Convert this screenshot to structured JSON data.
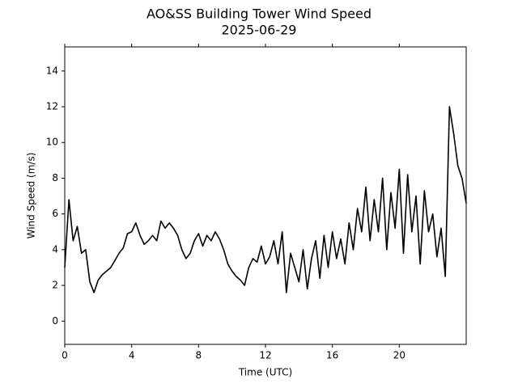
{
  "chart_data": {
    "type": "line",
    "title": "AO&SS Building Tower Wind Speed",
    "subtitle": "2025-06-29",
    "xlabel": "Time (UTC)",
    "ylabel": "Wind Speed (m/s)",
    "color": "#000000",
    "x": [
      0,
      0.25,
      0.5,
      0.75,
      1,
      1.25,
      1.5,
      1.75,
      2,
      2.25,
      2.5,
      2.75,
      3,
      3.25,
      3.5,
      3.75,
      4,
      4.25,
      4.5,
      4.75,
      5,
      5.25,
      5.5,
      5.75,
      6,
      6.25,
      6.5,
      6.75,
      7,
      7.25,
      7.5,
      7.75,
      8,
      8.25,
      8.5,
      8.75,
      9,
      9.25,
      9.5,
      9.75,
      10,
      10.25,
      10.5,
      10.75,
      11,
      11.25,
      11.5,
      11.75,
      12,
      12.25,
      12.5,
      12.75,
      13,
      13.25,
      13.5,
      13.75,
      14,
      14.25,
      14.5,
      14.75,
      15,
      15.25,
      15.5,
      15.75,
      16,
      16.25,
      16.5,
      16.75,
      17,
      17.25,
      17.5,
      17.75,
      18,
      18.25,
      18.5,
      18.75,
      19,
      19.25,
      19.5,
      19.75,
      20,
      20.25,
      20.5,
      20.75,
      21,
      21.25,
      21.5,
      21.75,
      22,
      22.25,
      22.5,
      22.75,
      23,
      23.25,
      23.5,
      23.75,
      24
    ],
    "values": [
      3.0,
      6.8,
      4.5,
      5.3,
      3.8,
      4.0,
      2.2,
      1.6,
      2.3,
      2.6,
      2.8,
      3.0,
      3.4,
      3.8,
      4.1,
      4.9,
      5.0,
      5.5,
      4.8,
      4.3,
      4.5,
      4.8,
      4.5,
      5.6,
      5.2,
      5.5,
      5.2,
      4.8,
      4.0,
      3.5,
      3.8,
      4.5,
      4.9,
      4.2,
      4.8,
      4.5,
      5.0,
      4.6,
      4.0,
      3.2,
      2.8,
      2.5,
      2.3,
      2.0,
      3.0,
      3.5,
      3.3,
      4.2,
      3.2,
      3.6,
      4.5,
      3.2,
      5.0,
      1.6,
      3.8,
      3.0,
      2.2,
      4.0,
      1.8,
      3.5,
      4.5,
      2.4,
      4.8,
      3.0,
      5.0,
      3.5,
      4.6,
      3.2,
      5.5,
      4.0,
      6.3,
      5.0,
      7.5,
      4.5,
      6.8,
      5.0,
      8.0,
      4.0,
      7.2,
      5.2,
      8.5,
      3.8,
      8.2,
      5.0,
      7.0,
      3.2,
      7.3,
      5.0,
      6.0,
      3.6,
      5.2,
      2.5,
      12.0,
      10.5,
      8.7,
      8.0,
      6.6
    ],
    "xlim": [
      0,
      24
    ],
    "ylim": [
      -1.3,
      15.35
    ],
    "xticks": [
      0,
      4,
      8,
      12,
      16,
      20
    ],
    "yticks": [
      0,
      2,
      4,
      6,
      8,
      10,
      12,
      14
    ]
  }
}
